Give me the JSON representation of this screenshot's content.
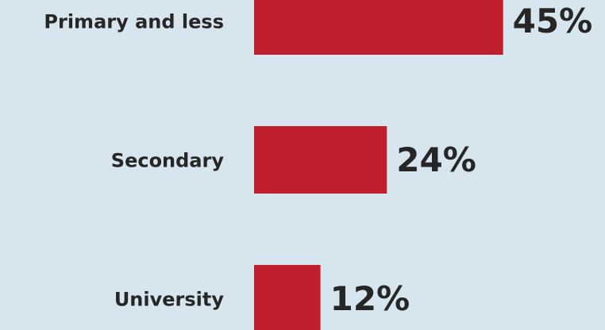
{
  "chart_data": {
    "type": "bar",
    "orientation": "horizontal",
    "categories": [
      "Primary and less",
      "Secondary",
      "University"
    ],
    "values": [
      45,
      24,
      12
    ],
    "value_labels": [
      "45%",
      "24%",
      "12%"
    ],
    "color": "#c01f2e"
  }
}
